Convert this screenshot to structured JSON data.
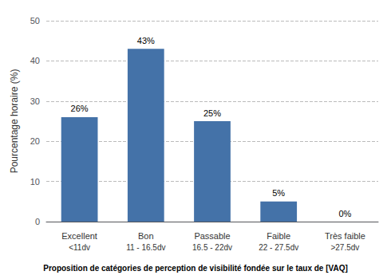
{
  "chart_data": {
    "type": "bar",
    "categories": [
      "Excellent",
      "Bon",
      "Passable",
      "Faible",
      "Très faible"
    ],
    "subcategories": [
      "<11dv",
      "11 - 16.5dv",
      "16.5 - 22dv",
      "22 - 27.5dv",
      ">27.5dv"
    ],
    "values": [
      26,
      43,
      25,
      5,
      0
    ],
    "value_labels": [
      "26%",
      "43%",
      "25%",
      "5%",
      "0%"
    ],
    "data_labels": true,
    "color": "#4472a8",
    "ylabel": "Pourcentage horaire (%)",
    "xlabel": "Proposition de catégories de perception de visibilité fondée sur le taux de [VAQ]",
    "ylim": [
      0,
      50
    ],
    "yticks": [
      0,
      10,
      20,
      30,
      40,
      50
    ],
    "grid": true
  }
}
